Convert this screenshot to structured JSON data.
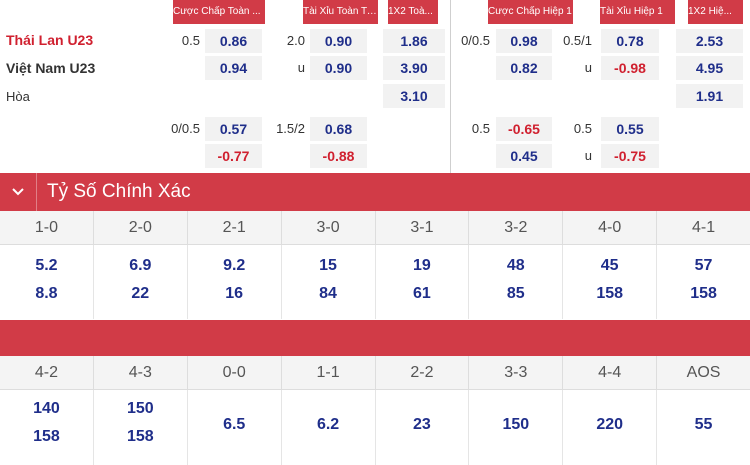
{
  "headers": {
    "ft_handicap": "Cược Chấp Toàn ...",
    "ft_ou": "Tài Xỉu Toàn Trận",
    "ft_1x2": "1X2 Toà...",
    "ht_handicap": "Cược Chấp Hiệp 1",
    "ht_ou": "Tài Xỉu Hiệp 1",
    "ht_1x2": "1X2 Hiệ..."
  },
  "teams": {
    "home": "Thái Lan U23",
    "away": "Việt Nam U23",
    "draw": "Hòa"
  },
  "colors": {
    "accent": "#d13b47",
    "value_blue": "#1f2e8a",
    "value_red": "#d0202f",
    "cell_bg": "#f2f2f2"
  },
  "odds": {
    "row1": {
      "ft_hcap_line": "0.5",
      "ft_hcap_home": "0.86",
      "ft_ou_line": "2.0",
      "ft_ou_over": "0.90",
      "ft_1x2_home": "1.86",
      "ht_hcap_line": "0/0.5",
      "ht_hcap_home": "0.98",
      "ht_ou_line": "0.5/1",
      "ht_ou_over": "0.78",
      "ht_1x2_home": "2.53"
    },
    "row2": {
      "ft_hcap_away": "0.94",
      "ft_ou_label": "u",
      "ft_ou_under": "0.90",
      "ft_1x2_away": "3.90",
      "ht_hcap_away": "0.82",
      "ht_ou_label": "u",
      "ht_ou_under": "-0.98",
      "ht_1x2_away": "4.95"
    },
    "row3": {
      "ft_1x2_draw": "3.10",
      "ht_1x2_draw": "1.91"
    },
    "row4": {
      "ft_hcap_line": "0/0.5",
      "ft_hcap_home": "0.57",
      "ft_ou_line": "1.5/2",
      "ft_ou_over": "0.68",
      "ht_hcap_line": "0.5",
      "ht_hcap_home": "-0.65",
      "ht_ou_line": "0.5",
      "ht_ou_over": "0.55"
    },
    "row5": {
      "ft_hcap_away": "-0.77",
      "ft_ou_under": "-0.88",
      "ht_hcap_away": "0.45",
      "ht_ou_label": "u",
      "ht_ou_under": "-0.75"
    }
  },
  "exact_score": {
    "title": "Tỷ Số Chính Xác",
    "group1": {
      "scores": [
        "1-0",
        "2-0",
        "2-1",
        "3-0",
        "3-1",
        "3-2",
        "4-0",
        "4-1"
      ],
      "home": [
        "5.2",
        "6.9",
        "9.2",
        "15",
        "19",
        "48",
        "45",
        "57"
      ],
      "away": [
        "8.8",
        "22",
        "16",
        "84",
        "61",
        "85",
        "158",
        "158"
      ]
    },
    "group2": {
      "scores": [
        "4-2",
        "4-3",
        "0-0",
        "1-1",
        "2-2",
        "3-3",
        "4-4",
        "AOS"
      ],
      "home": [
        "140",
        "150",
        "",
        "",
        "",
        "",
        "",
        ""
      ],
      "away": [
        "158",
        "158",
        "",
        "",
        "",
        "",
        "",
        ""
      ],
      "single": [
        "",
        "",
        "6.5",
        "6.2",
        "23",
        "150",
        "220",
        "55"
      ]
    }
  }
}
